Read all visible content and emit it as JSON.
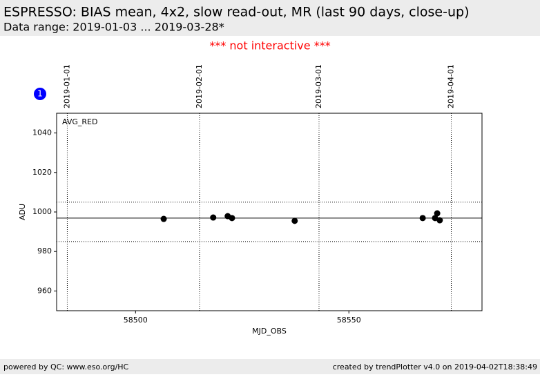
{
  "header": {
    "title": "ESPRESSO: BIAS mean, 4x2, slow read-out, MR (last 90 days, close-up)",
    "subtitle": "Data range: 2019-01-03 ... 2019-03-28*"
  },
  "notice": "*** not interactive ***",
  "badge": "1",
  "chart_data": {
    "type": "scatter",
    "annotation": "AVG_RED",
    "x_label": "MJD_OBS",
    "y_label": "ADU",
    "x": [
      58506.6,
      58518.2,
      58521.6,
      58522.6,
      58537.3,
      58567.3,
      58570.2,
      58570.7,
      58571.3
    ],
    "values": [
      996.5,
      997.2,
      997.9,
      996.9,
      995.5,
      996.9,
      996.9,
      999.3,
      995.8
    ],
    "color": "#000000",
    "mean": 996.9,
    "limits": [
      985,
      1005
    ],
    "xlim": [
      58481.5,
      58581.2
    ],
    "ylim": [
      950,
      1050
    ],
    "xticks": [
      58500,
      58550
    ],
    "yticks": [
      960,
      980,
      1000,
      1020,
      1040
    ],
    "top_xticks": [
      {
        "value": 58484,
        "label": "2019-01-01"
      },
      {
        "value": 58515,
        "label": "2019-02-01"
      },
      {
        "value": 58543,
        "label": "2019-03-01"
      },
      {
        "value": 58574,
        "label": "2019-04-01"
      }
    ]
  },
  "footer": {
    "left": "powered by QC: www.eso.org/HC",
    "right": "created by trendPlotter v4.0 on 2019-04-02T18:38:49"
  }
}
